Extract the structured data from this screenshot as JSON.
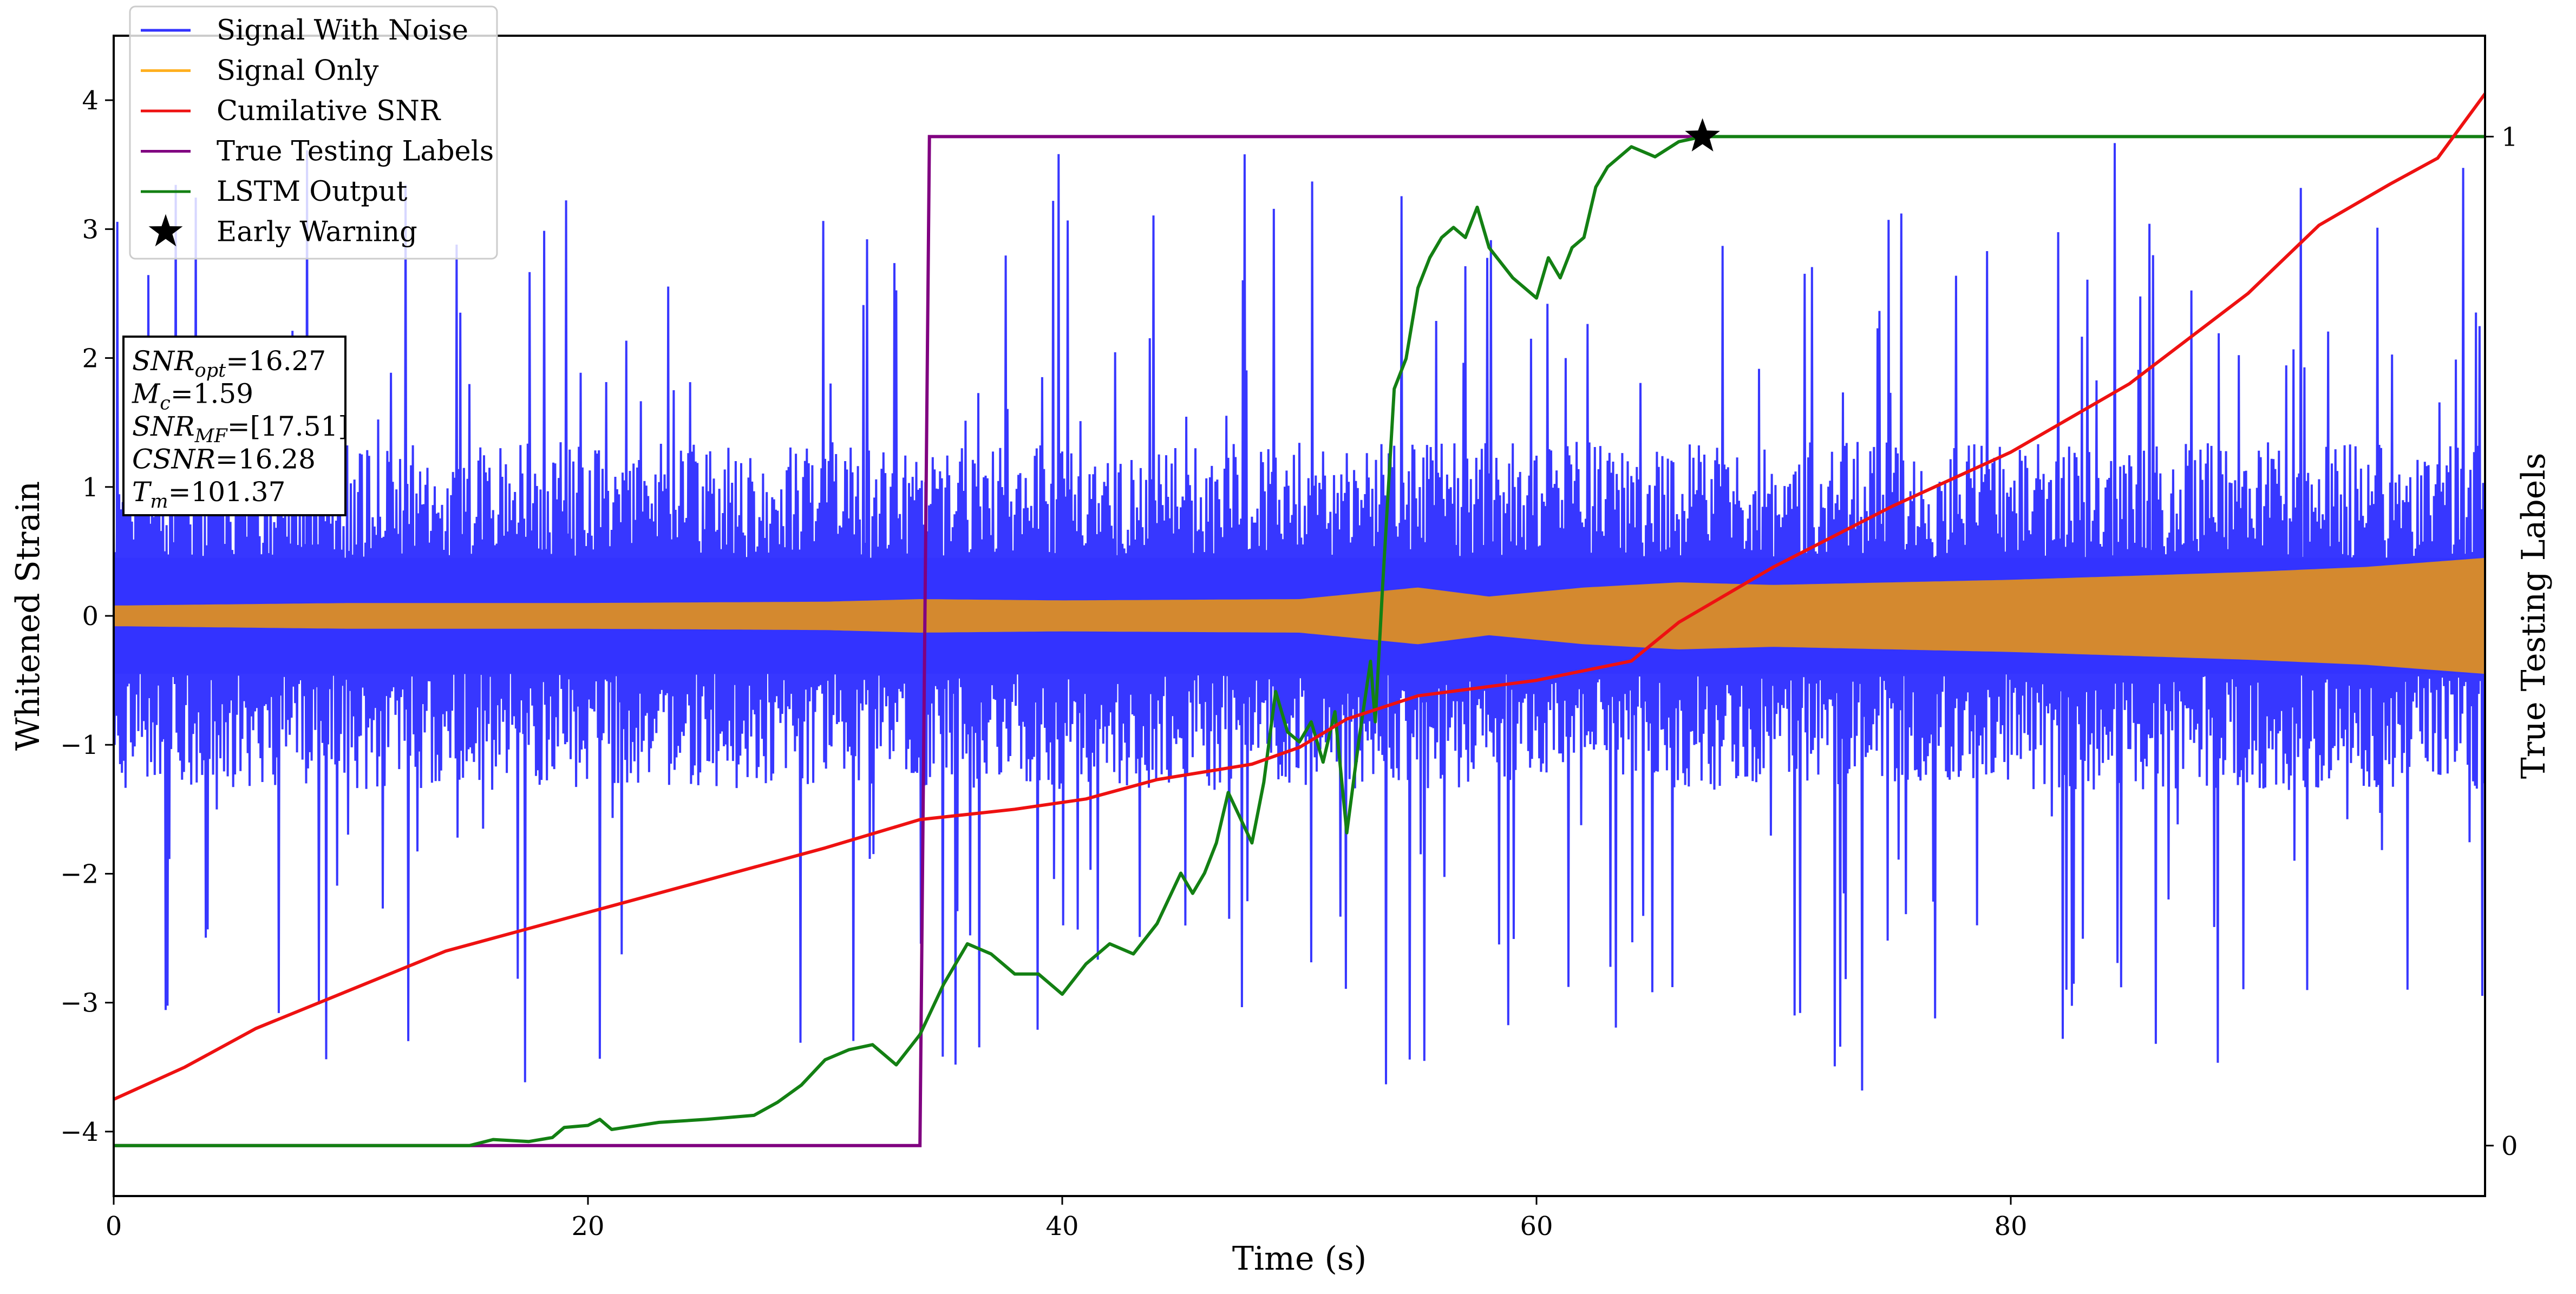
{
  "chart_data": {
    "type": "line",
    "xlabel": "Time (s)",
    "ylabel": "Whitened Strain",
    "y2label": "True Testing Labels",
    "xlim": [
      0,
      100
    ],
    "ylim": [
      -4.5,
      4.5
    ],
    "y2lim": [
      -0.05,
      1.1
    ],
    "x_ticks": [
      "0",
      "20",
      "40",
      "60",
      "80"
    ],
    "x_tick_values": [
      0,
      20,
      40,
      60,
      80
    ],
    "y_ticks": [
      "−4",
      "−3",
      "−2",
      "−1",
      "0",
      "1",
      "2",
      "3",
      "4"
    ],
    "y_tick_values": [
      -4,
      -3,
      -2,
      -1,
      0,
      1,
      2,
      3,
      4
    ],
    "y2_ticks": [
      "0",
      "1"
    ],
    "y2_tick_values": [
      0,
      1
    ],
    "legend": {
      "placement": "top-left",
      "entries": [
        {
          "label": "Signal With Noise",
          "color": "#3333ff",
          "marker": "line"
        },
        {
          "label": "Signal Only",
          "color": "#ffb020",
          "marker": "line"
        },
        {
          "label": "Cumilative SNR",
          "color": "#ee1111",
          "marker": "line"
        },
        {
          "label": "True Testing Labels",
          "color": "#800080",
          "marker": "line"
        },
        {
          "label": "LSTM Output",
          "color": "#138013",
          "marker": "line"
        },
        {
          "label": "Early Warning",
          "color": "#000000",
          "marker": "star"
        }
      ]
    },
    "info_box": {
      "lines": [
        {
          "name": "SNR",
          "sub": "opt",
          "value": "=16.27"
        },
        {
          "name": "M",
          "sub": "c",
          "value": "=1.59"
        },
        {
          "name": "SNR",
          "sub": "MF",
          "value": "=[17.51]"
        },
        {
          "name": "CSNR",
          "sub": "",
          "value": "=16.28"
        },
        {
          "name": "T",
          "sub": "m",
          "value": "=101.37"
        }
      ]
    },
    "series": [
      {
        "name": "Signal With Noise",
        "axis": "left",
        "color": "#3333ff",
        "style": "noise band",
        "band_inner": 0.45,
        "band_outer": 1.35,
        "spike_range": [
          -3.6,
          3.8
        ]
      },
      {
        "name": "Signal Only",
        "axis": "left",
        "color": "#d4892f",
        "style": "oscillating envelope",
        "envelope_x": [
          0,
          10,
          20,
          30,
          34,
          40,
          50,
          55,
          58,
          62,
          66,
          70,
          80,
          90,
          95,
          100
        ],
        "envelope_amp": [
          0.08,
          0.1,
          0.1,
          0.11,
          0.13,
          0.12,
          0.13,
          0.22,
          0.15,
          0.22,
          0.26,
          0.24,
          0.28,
          0.34,
          0.38,
          0.45
        ]
      },
      {
        "name": "Cumilative SNR",
        "axis": "left",
        "color": "#ee1111",
        "x": [
          0,
          3,
          6,
          10,
          14,
          20,
          26,
          30,
          34,
          38,
          41,
          44,
          48,
          50,
          52,
          55,
          60,
          64,
          66,
          70,
          75,
          80,
          85,
          90,
          93,
          96,
          98,
          100
        ],
        "y": [
          -3.75,
          -3.5,
          -3.2,
          -2.9,
          -2.6,
          -2.3,
          -2.0,
          -1.8,
          -1.58,
          -1.5,
          -1.42,
          -1.27,
          -1.15,
          -1.02,
          -0.8,
          -0.62,
          -0.5,
          -0.35,
          -0.05,
          0.38,
          0.85,
          1.27,
          1.8,
          2.5,
          3.03,
          3.35,
          3.55,
          4.05
        ]
      },
      {
        "name": "True Testing Labels",
        "axis": "right",
        "color": "#800080",
        "x": [
          0,
          34.0,
          34.4,
          67.0
        ],
        "y": [
          0,
          0,
          1,
          1
        ]
      },
      {
        "name": "LSTM Output",
        "axis": "right",
        "color": "#138013",
        "x": [
          0,
          15,
          16,
          17.5,
          18.5,
          19,
          20,
          20.5,
          21,
          23,
          25,
          27,
          28,
          29,
          30,
          31,
          32,
          33,
          33.5,
          34,
          35,
          36,
          37,
          38,
          39,
          40,
          41,
          42,
          43,
          44,
          45,
          45.5,
          46,
          46.5,
          47,
          48,
          48.5,
          49,
          49.5,
          50,
          50.5,
          51,
          51.5,
          52,
          52.5,
          53,
          53.2,
          53.5,
          54,
          54.5,
          55,
          55.5,
          56,
          56.5,
          57,
          57.5,
          58,
          59,
          60,
          60.5,
          61,
          61.5,
          62,
          62.5,
          63,
          64,
          65,
          66,
          67,
          70,
          80,
          90,
          100
        ],
        "y": [
          0,
          0,
          0.006,
          0.004,
          0.008,
          0.018,
          0.02,
          0.026,
          0.016,
          0.023,
          0.026,
          0.03,
          0.043,
          0.06,
          0.085,
          0.095,
          0.1,
          0.08,
          0.095,
          0.11,
          0.16,
          0.2,
          0.19,
          0.17,
          0.17,
          0.15,
          0.18,
          0.2,
          0.19,
          0.22,
          0.27,
          0.25,
          0.27,
          0.3,
          0.35,
          0.3,
          0.36,
          0.45,
          0.41,
          0.4,
          0.42,
          0.38,
          0.43,
          0.31,
          0.4,
          0.48,
          0.42,
          0.55,
          0.75,
          0.78,
          0.85,
          0.88,
          0.9,
          0.91,
          0.9,
          0.93,
          0.89,
          0.86,
          0.84,
          0.88,
          0.86,
          0.89,
          0.9,
          0.95,
          0.97,
          0.99,
          0.98,
          0.995,
          1.0,
          1.0,
          1.0,
          1.0,
          1.0
        ]
      }
    ],
    "early_warning": {
      "x": 67.0,
      "y2": 1.0
    }
  }
}
